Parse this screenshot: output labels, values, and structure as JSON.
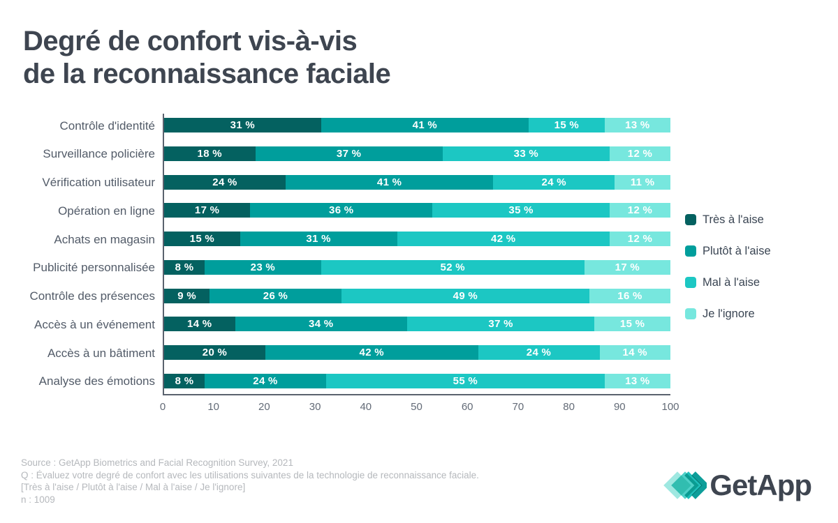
{
  "title": {
    "line1": "Degré de confort vis-à-vis",
    "line2": "de la reconnaissance faciale"
  },
  "chart_data": {
    "type": "bar",
    "orientation": "horizontal",
    "stacked": true,
    "title": "Degré de confort vis-à-vis de la reconnaissance faciale",
    "categories": [
      "Contrôle d'identité",
      "Surveillance policière",
      "Vérification utilisateur",
      "Opération en ligne",
      "Achats en magasin",
      "Publicité personnalisée",
      "Contrôle des présences",
      "Accès à un événement",
      "Accès à un bâtiment",
      "Analyse des émotions"
    ],
    "series": [
      {
        "name": "Très à l'aise",
        "color": "#046160",
        "values": [
          31,
          18,
          24,
          17,
          15,
          8,
          9,
          14,
          20,
          8
        ]
      },
      {
        "name": "Plutôt à l'aise",
        "color": "#009E9C",
        "values": [
          41,
          37,
          41,
          36,
          31,
          23,
          26,
          34,
          42,
          24
        ]
      },
      {
        "name": "Mal à l'aise",
        "color": "#1CC7C3",
        "values": [
          15,
          33,
          24,
          35,
          42,
          52,
          49,
          37,
          24,
          55
        ]
      },
      {
        "name": "Je l'ignore",
        "color": "#77E7DE",
        "values": [
          13,
          12,
          11,
          12,
          12,
          17,
          16,
          15,
          14,
          13
        ]
      }
    ],
    "x_ticks": [
      0,
      10,
      20,
      30,
      40,
      50,
      60,
      70,
      80,
      90,
      100
    ],
    "xlim": [
      0,
      100
    ],
    "value_label_suffix": " %",
    "grid": false,
    "legend_position": "right"
  },
  "footer": {
    "lines": [
      "Source : GetApp Biometrics and Facial Recognition Survey, 2021",
      "Q : Évaluez votre degré de confort avec les utilisations suivantes de la technologie de reconnaissance faciale.",
      "[Très à l'aise / Plutôt à l'aise / Mal à l'aise / Je l'ignore]",
      "n : 1009"
    ]
  },
  "logo": {
    "text": "GetApp",
    "mark_colors": [
      "#9FE8E1",
      "#4ED0C8",
      "#1FBFBA",
      "#0E9E9A"
    ]
  },
  "colors": {
    "title_text": "#3E4550",
    "category_text": "#525B68",
    "legend_text": "#3A4553",
    "axis": "#5A626E",
    "tick_text": "#636B77",
    "footer_text": "#B5B8BC",
    "background": "#FFFFFF"
  }
}
